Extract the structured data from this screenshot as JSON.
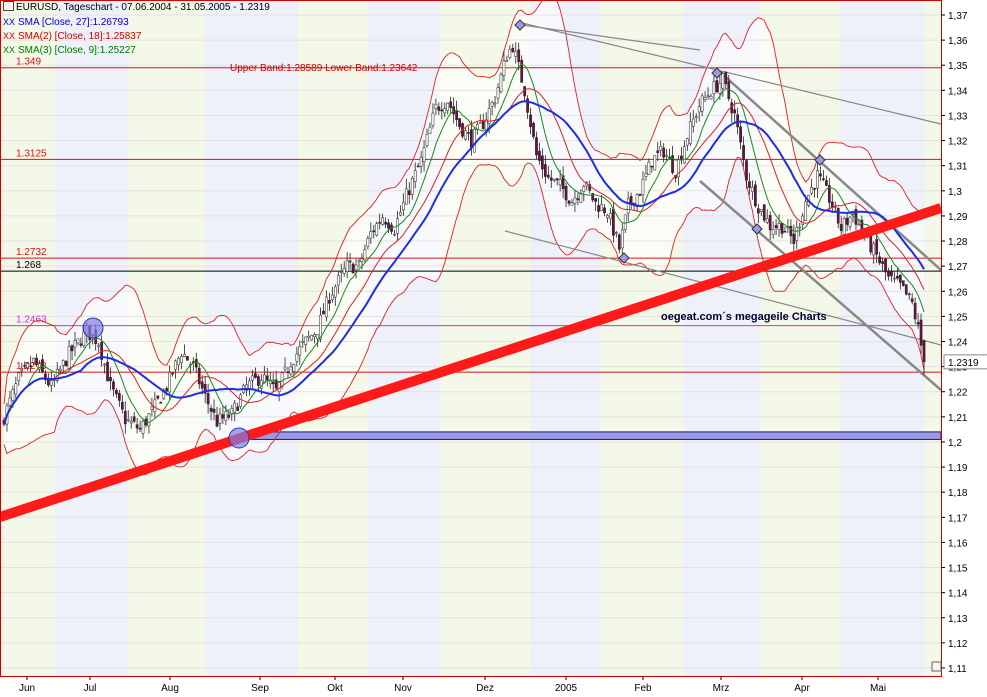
{
  "legend": [
    {
      "text": "EURUSD, Tageschart - 07.06.2004 - 31.05.2005 - 1.2319",
      "color": "#000000"
    },
    {
      "text": "SMA [Close, 27]:1.26793",
      "color": "#0000cc",
      "marker": "XX"
    },
    {
      "text": "SMA(2) [Close, 18]:1.25837",
      "color": "#cc0000",
      "marker": "XX"
    },
    {
      "text": "SMA(3) [Close, 9]:1.25227",
      "color": "#007700",
      "marker": "XX"
    }
  ],
  "band_label": "Upper Band:1.28589 Lower Band:1.23642",
  "watermark": "oegeat.com´s megageile Charts",
  "last_price_label": "1.2319",
  "colors": {
    "up_candle": "#ffffff",
    "down_candle": "#6a1040",
    "sma27": "#1f2ee0",
    "sma18": "#dd2222",
    "sma9": "#1a8a1a",
    "bollinger": "#dd2222",
    "trendline": "#ff1a1a",
    "channel": "#888888",
    "support_zone": "#9a9ae8",
    "band_fill_alt": "#eef1fa",
    "band_fill": "#f4f8e8"
  },
  "chart_data": {
    "type": "candlestick",
    "title": "EURUSD, Tageschart - 07.06.2004 - 31.05.2005 - 1.2319",
    "ylim": [
      1.11,
      1.375
    ],
    "y_ticks": [
      "1,37",
      "1,36",
      "1,35",
      "1,34",
      "1,33",
      "1,32",
      "1,31",
      "1,3",
      "1,29",
      "1,28",
      "1,27",
      "1,26",
      "1,25",
      "1,24",
      "1,23",
      "1,22",
      "1,21",
      "1,2",
      "1,19",
      "1,18",
      "1,17",
      "1,16",
      "1,15",
      "1,14",
      "1,13",
      "1,12",
      "1,11"
    ],
    "x_ticks": [
      "Jun",
      "Jul",
      "Aug",
      "Sep",
      "Okt",
      "Nov",
      "Dez",
      "2005",
      "Feb",
      "Mrz",
      "Apr",
      "Mai"
    ],
    "horizontal_levels": [
      {
        "label": "1.349",
        "value": 1.349
      },
      {
        "label": "1.3125",
        "value": 1.3125
      },
      {
        "label": "1.2732",
        "value": 1.2732
      },
      {
        "label": "1.268",
        "value": 1.268
      },
      {
        "label": "1.2463",
        "value": 1.2463
      },
      {
        "label": "1.2278",
        "value": 1.2278
      }
    ],
    "support_zone": [
      1.201,
      1.204
    ],
    "last_close": 1.2319,
    "series": [
      {
        "name": "SMA [Close, 27]",
        "last": 1.26793
      },
      {
        "name": "SMA(2) [Close, 18]",
        "last": 1.25837
      },
      {
        "name": "SMA(3) [Close, 9]",
        "last": 1.25227
      }
    ],
    "price_path": [
      [
        0,
        1.21
      ],
      [
        5,
        1.225
      ],
      [
        10,
        1.232
      ],
      [
        16,
        1.222
      ],
      [
        22,
        1.235
      ],
      [
        28,
        1.244
      ],
      [
        32,
        1.24
      ],
      [
        36,
        1.222
      ],
      [
        41,
        1.209
      ],
      [
        46,
        1.205
      ],
      [
        50,
        1.212
      ],
      [
        55,
        1.222
      ],
      [
        60,
        1.236
      ],
      [
        64,
        1.23
      ],
      [
        68,
        1.218
      ],
      [
        72,
        1.208
      ],
      [
        77,
        1.211
      ],
      [
        82,
        1.222
      ],
      [
        87,
        1.226
      ],
      [
        92,
        1.22
      ],
      [
        97,
        1.232
      ],
      [
        102,
        1.24
      ],
      [
        106,
        1.245
      ],
      [
        110,
        1.258
      ],
      [
        116,
        1.27
      ],
      [
        120,
        1.27
      ],
      [
        124,
        1.283
      ],
      [
        128,
        1.29
      ],
      [
        132,
        1.285
      ],
      [
        136,
        1.298
      ],
      [
        141,
        1.312
      ],
      [
        146,
        1.333
      ],
      [
        150,
        1.336
      ],
      [
        154,
        1.326
      ],
      [
        158,
        1.32
      ],
      [
        162,
        1.327
      ],
      [
        166,
        1.337
      ],
      [
        170,
        1.354
      ],
      [
        172,
        1.358
      ],
      [
        176,
        1.34
      ],
      [
        180,
        1.314
      ],
      [
        184,
        1.305
      ],
      [
        188,
        1.302
      ],
      [
        192,
        1.296
      ],
      [
        196,
        1.303
      ],
      [
        200,
        1.295
      ],
      [
        204,
        1.292
      ],
      [
        208,
        1.277
      ],
      [
        211,
        1.294
      ],
      [
        215,
        1.3
      ],
      [
        219,
        1.312
      ],
      [
        223,
        1.316
      ],
      [
        227,
        1.308
      ],
      [
        231,
        1.322
      ],
      [
        235,
        1.334
      ],
      [
        239,
        1.34
      ],
      [
        243,
        1.344
      ],
      [
        247,
        1.33
      ],
      [
        251,
        1.306
      ],
      [
        255,
        1.294
      ],
      [
        259,
        1.286
      ],
      [
        263,
        1.286
      ],
      [
        267,
        1.28
      ],
      [
        271,
        1.296
      ],
      [
        275,
        1.306
      ],
      [
        279,
        1.297
      ],
      [
        283,
        1.285
      ],
      [
        287,
        1.291
      ],
      [
        291,
        1.282
      ],
      [
        295,
        1.274
      ],
      [
        299,
        1.265
      ],
      [
        303,
        1.262
      ],
      [
        307,
        1.255
      ],
      [
        309,
        1.245
      ],
      [
        311,
        1.232
      ]
    ]
  }
}
